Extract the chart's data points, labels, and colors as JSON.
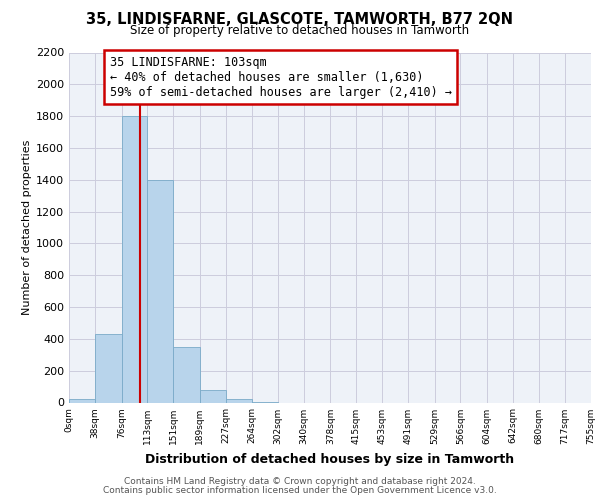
{
  "title": "35, LINDISFARNE, GLASCOTE, TAMWORTH, B77 2QN",
  "subtitle": "Size of property relative to detached houses in Tamworth",
  "xlabel": "Distribution of detached houses by size in Tamworth",
  "ylabel": "Number of detached properties",
  "bar_edges": [
    0,
    38,
    76,
    113,
    151,
    189,
    227,
    264,
    302,
    340,
    378,
    415,
    453,
    491,
    529,
    566,
    604,
    642,
    680,
    717,
    755
  ],
  "bar_heights": [
    20,
    430,
    1800,
    1400,
    350,
    80,
    25,
    5,
    0,
    0,
    0,
    0,
    0,
    0,
    0,
    0,
    0,
    0,
    0,
    0
  ],
  "bar_color": "#b8d4eb",
  "bar_edge_color": "#7aaac8",
  "property_line_x": 103,
  "property_line_color": "#cc0000",
  "annotation_text": "35 LINDISFARNE: 103sqm\n← 40% of detached houses are smaller (1,630)\n59% of semi-detached houses are larger (2,410) →",
  "annotation_box_facecolor": "white",
  "annotation_box_edgecolor": "#cc0000",
  "ylim": [
    0,
    2200
  ],
  "yticks": [
    0,
    200,
    400,
    600,
    800,
    1000,
    1200,
    1400,
    1600,
    1800,
    2000,
    2200
  ],
  "xtick_labels": [
    "0sqm",
    "38sqm",
    "76sqm",
    "113sqm",
    "151sqm",
    "189sqm",
    "227sqm",
    "264sqm",
    "302sqm",
    "340sqm",
    "378sqm",
    "415sqm",
    "453sqm",
    "491sqm",
    "529sqm",
    "566sqm",
    "604sqm",
    "642sqm",
    "680sqm",
    "717sqm",
    "755sqm"
  ],
  "grid_color": "#ccccdd",
  "background_color": "#eef2f8",
  "footer_line1": "Contains HM Land Registry data © Crown copyright and database right 2024.",
  "footer_line2": "Contains public sector information licensed under the Open Government Licence v3.0."
}
